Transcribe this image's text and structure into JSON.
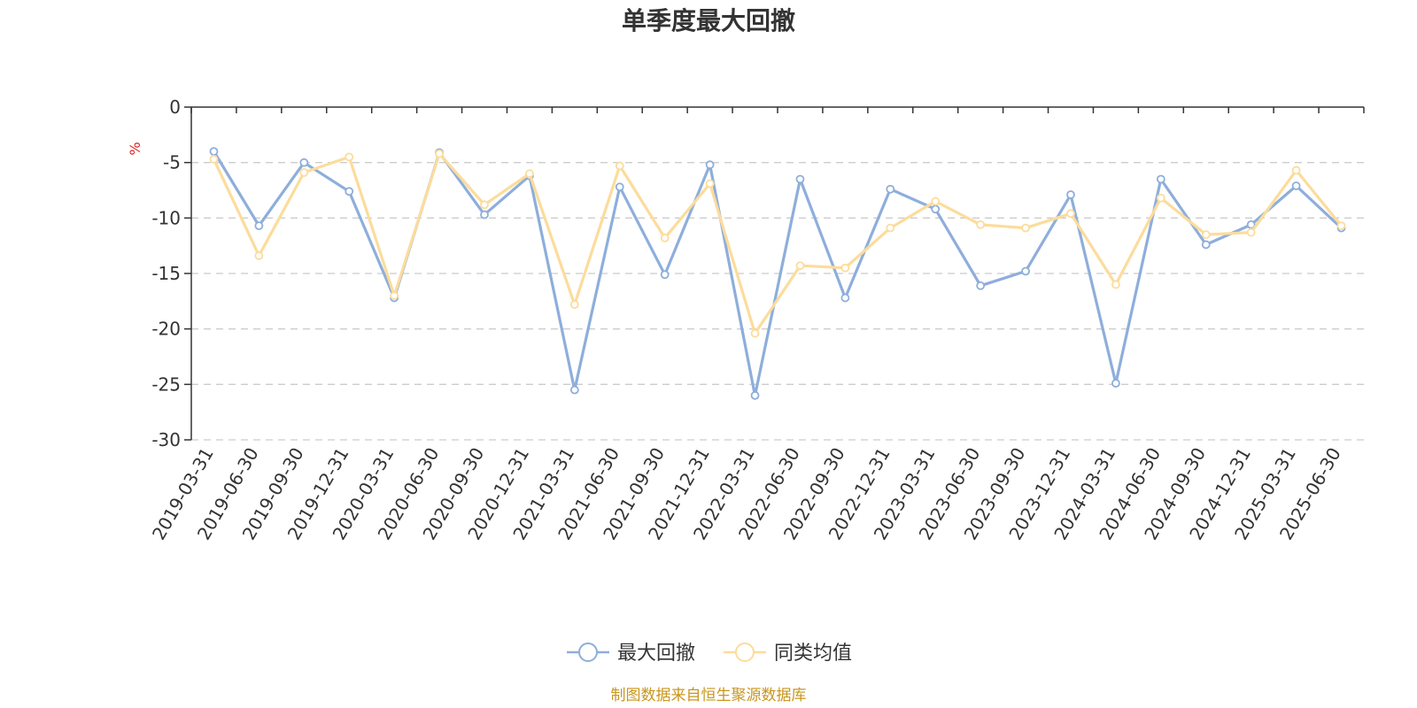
{
  "chart_data": {
    "type": "line",
    "title": "单季度最大回撤",
    "ylabel": "%",
    "ylim": [
      -30,
      0
    ],
    "yticks": [
      0,
      -5,
      -10,
      -15,
      -20,
      -25,
      -30
    ],
    "grid": true,
    "legend_position": "bottom-center",
    "categories": [
      "2019-03-31",
      "2019-06-30",
      "2019-09-30",
      "2019-12-31",
      "2020-03-31",
      "2020-06-30",
      "2020-09-30",
      "2020-12-31",
      "2021-03-31",
      "2021-06-30",
      "2021-09-30",
      "2021-12-31",
      "2022-03-31",
      "2022-06-30",
      "2022-09-30",
      "2022-12-31",
      "2023-03-31",
      "2023-06-30",
      "2023-09-30",
      "2023-12-31",
      "2024-03-31",
      "2024-06-30",
      "2024-09-30",
      "2024-12-31",
      "2025-03-31",
      "2025-06-30"
    ],
    "series": [
      {
        "name": "最大回撤",
        "color": "#8eaedb",
        "values": [
          -4.0,
          -10.7,
          -5.0,
          -7.6,
          -17.2,
          -4.1,
          -9.7,
          -6.2,
          -25.5,
          -7.2,
          -15.1,
          -5.2,
          -26.0,
          -6.5,
          -17.2,
          -7.4,
          -9.2,
          -16.1,
          -14.8,
          -7.9,
          -24.9,
          -6.5,
          -12.4,
          -10.6,
          -7.1,
          -10.9
        ]
      },
      {
        "name": "同类均值",
        "color": "#fcdc9c",
        "values": [
          -4.7,
          -13.4,
          -5.9,
          -4.5,
          -17.0,
          -4.2,
          -8.8,
          -6.0,
          -17.8,
          -5.3,
          -11.8,
          -6.9,
          -20.4,
          -14.3,
          -14.5,
          -10.9,
          -8.5,
          -10.6,
          -10.9,
          -9.6,
          -16.0,
          -8.2,
          -11.5,
          -11.3,
          -5.7,
          -10.7
        ]
      }
    ]
  },
  "legend": {
    "items": [
      "最大回撤",
      "同类均值"
    ]
  },
  "footer": {
    "source": "制图数据来自恒生聚源数据库"
  }
}
